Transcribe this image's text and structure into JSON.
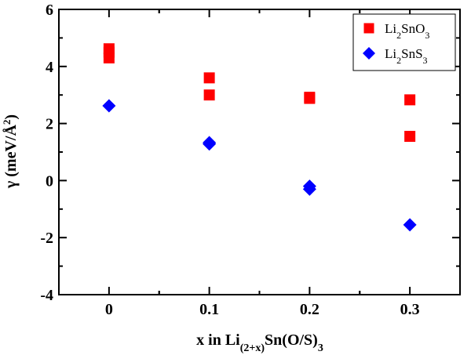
{
  "chart_data": {
    "type": "scatter",
    "title": "",
    "xlabel": {
      "prefix": "x in Li",
      "sub": "(2+x)",
      "middle": "Sn(O/S)",
      "sub2": "3"
    },
    "ylabel": {
      "prefix": "γ  (meV/Å",
      "sup": "2",
      "suffix": ")"
    },
    "xlim": [
      -0.05,
      0.35
    ],
    "ylim": [
      -4,
      6
    ],
    "xticks": [
      0,
      0.1,
      0.2,
      0.3
    ],
    "xtick_labels": [
      "0",
      "0.1",
      "0.2",
      "0.3"
    ],
    "yticks": [
      -4,
      -2,
      0,
      2,
      4,
      6
    ],
    "ytick_labels": [
      "-4",
      "-2",
      "0",
      "2",
      "4",
      "6"
    ],
    "legend_position": "top-right",
    "grid": false,
    "series": [
      {
        "name": "Li2SnO3",
        "name_parts": {
          "prefix": "Li",
          "sub": "2",
          "suffix": "SnO",
          "sub2": "3"
        },
        "marker": "square",
        "color": "#ff0000",
        "points": [
          {
            "x": 0,
            "y": 4.62
          },
          {
            "x": 0,
            "y": 4.5
          },
          {
            "x": 0,
            "y": 4.3
          },
          {
            "x": 0.1,
            "y": 3.6
          },
          {
            "x": 0.1,
            "y": 3.0
          },
          {
            "x": 0.2,
            "y": 2.92
          },
          {
            "x": 0.2,
            "y": 2.88
          },
          {
            "x": 0.3,
            "y": 2.83
          },
          {
            "x": 0.3,
            "y": 1.55
          }
        ]
      },
      {
        "name": "Li2SnS3",
        "name_parts": {
          "prefix": "Li",
          "sub": "2",
          "suffix": "SnS",
          "sub2": "3"
        },
        "marker": "diamond",
        "color": "#0000ff",
        "points": [
          {
            "x": 0,
            "y": 2.62
          },
          {
            "x": 0.1,
            "y": 1.33
          },
          {
            "x": 0.1,
            "y": 1.28
          },
          {
            "x": 0.2,
            "y": -0.2
          },
          {
            "x": 0.2,
            "y": -0.3
          },
          {
            "x": 0.3,
            "y": -1.55
          }
        ]
      }
    ]
  }
}
